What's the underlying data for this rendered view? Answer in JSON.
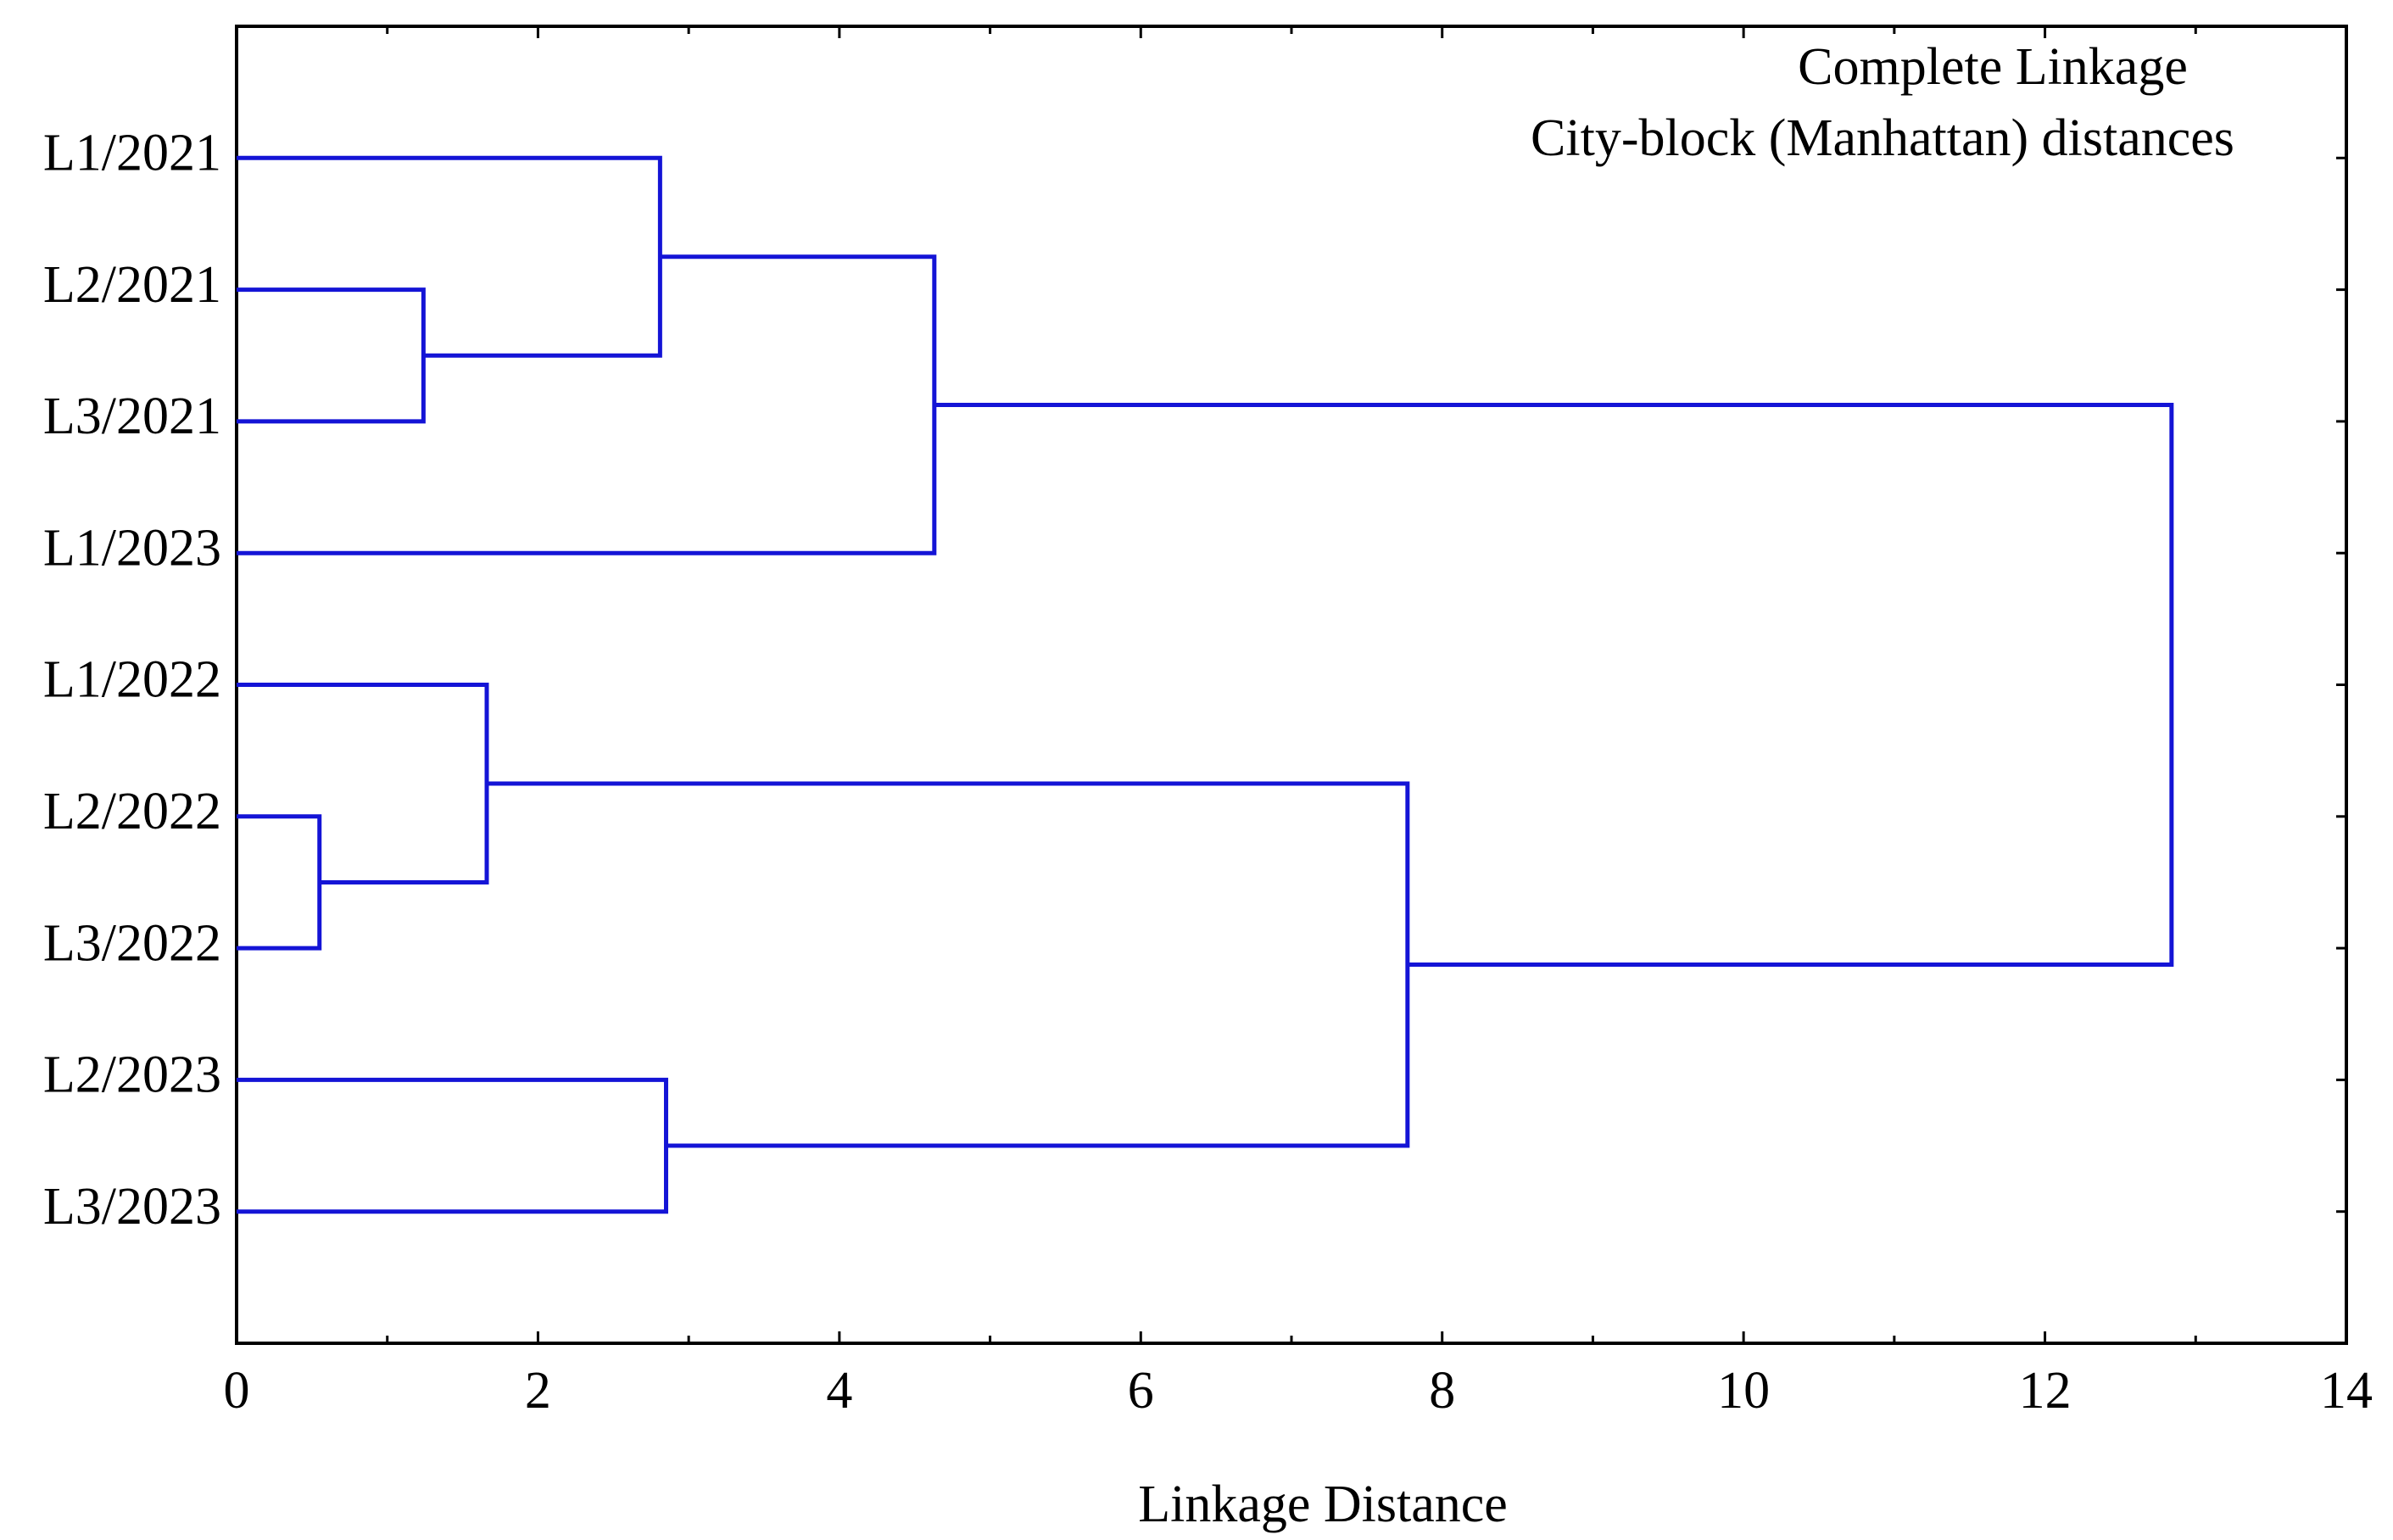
{
  "chart_data": {
    "type": "dendrogram",
    "title": [
      "Complete Linkage",
      "City-block (Manhattan) distances"
    ],
    "x_label": "Linkage Distance",
    "leaves": [
      "L1/2021",
      "L2/2021",
      "L3/2021",
      "L1/2023",
      "L1/2022",
      "L2/2022",
      "L3/2022",
      "L2/2023",
      "L3/2023"
    ],
    "merges": [
      {
        "children": [
          1,
          2
        ],
        "height": 1.24
      },
      {
        "children": [
          0,
          9
        ],
        "height": 2.81
      },
      {
        "children": [
          10,
          3
        ],
        "height": 4.63
      },
      {
        "children": [
          5,
          6
        ],
        "height": 0.55
      },
      {
        "children": [
          4,
          12
        ],
        "height": 1.66
      },
      {
        "children": [
          7,
          8
        ],
        "height": 2.85
      },
      {
        "children": [
          13,
          14
        ],
        "height": 7.77
      },
      {
        "children": [
          11,
          15
        ],
        "height": 12.84
      }
    ],
    "color": "#1414d6",
    "xlim": [
      0,
      14
    ],
    "xticks": [
      0,
      2,
      4,
      6,
      8,
      10,
      12,
      14
    ],
    "xminorticks": [
      1,
      3,
      5,
      7,
      9,
      11,
      13
    ]
  }
}
